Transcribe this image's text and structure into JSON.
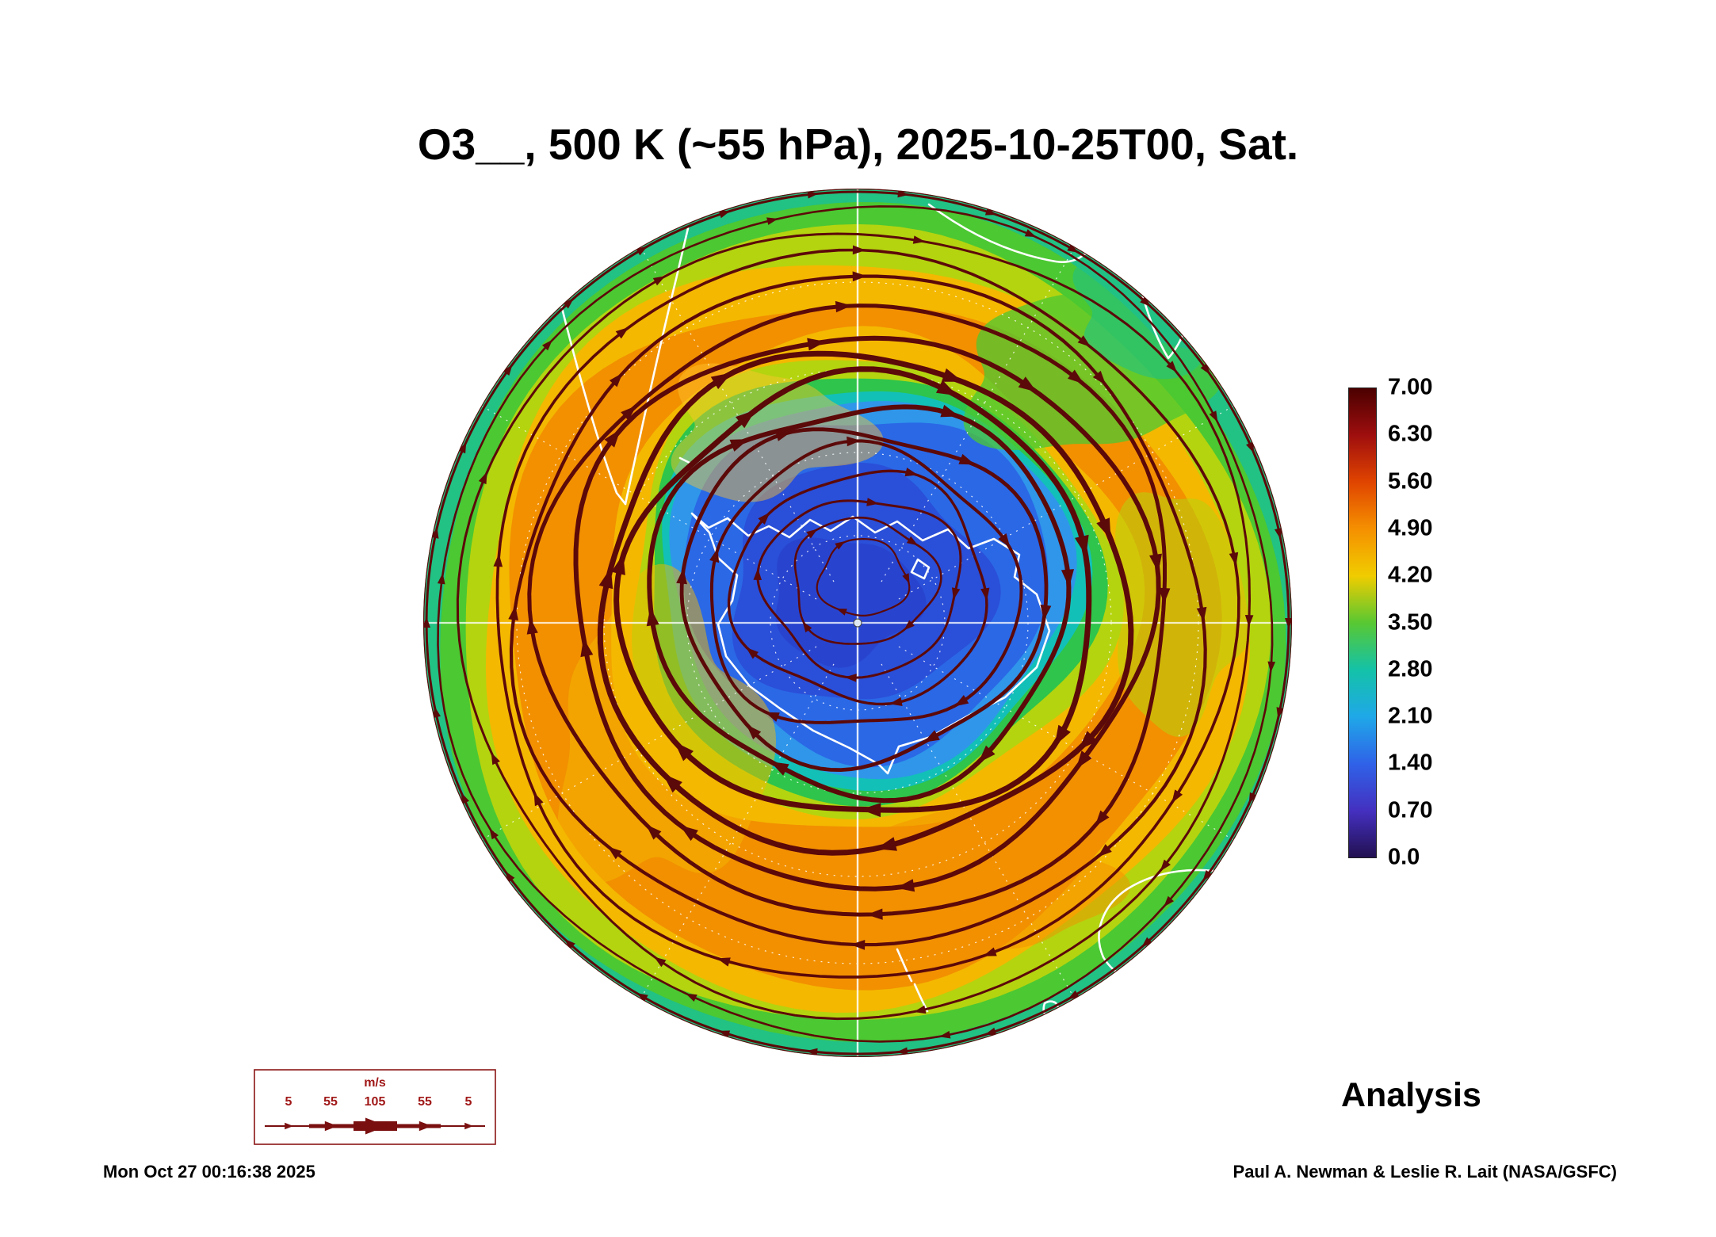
{
  "figure": {
    "title": "O3__, 500 K (~55 hPa), 2025-10-25T00, Sat.",
    "mode_label": "Analysis",
    "timestamp": "Mon Oct 27 00:16:38 2025",
    "credit": "Paul A. Newman & Leslie R. Lait (NASA/GSFC)"
  },
  "colorbar": {
    "ticks": [
      "7.00",
      "6.30",
      "5.60",
      "4.90",
      "4.20",
      "3.50",
      "2.80",
      "2.10",
      "1.40",
      "0.70",
      "0.0"
    ],
    "colors_top_to_bottom": [
      "#4a0000",
      "#9e0e0e",
      "#e04400",
      "#f59000",
      "#f0cc00",
      "#58c832",
      "#14c2a8",
      "#1fa8e8",
      "#2f62e8",
      "#4430c0",
      "#221050"
    ]
  },
  "wind_legend": {
    "unit": "m/s",
    "values": [
      "5",
      "55",
      "105",
      "55",
      "5"
    ],
    "line_color": "#7a0f0f",
    "text_color": "#a01818"
  },
  "chart_data": {
    "type": "heatmap",
    "title": "O3__, 500 K (~55 hPa), 2025-10-25T00, Sat.",
    "field": "O3 mixing ratio",
    "level": "500 K (~55 hPa)",
    "valid_time": "2025-10-25T00 (Saturday)",
    "analysis_type": "Analysis",
    "projection": "Southern Hemisphere polar stereographic, Antarctica centered",
    "colorbar_range": [
      0.0,
      7.0
    ],
    "colorbar_ticks": [
      7.0,
      6.3,
      5.6,
      4.9,
      4.2,
      3.5,
      2.8,
      2.1,
      1.4,
      0.7,
      0.0
    ],
    "regions": [
      {
        "feature": "polar vortex / ozone hole core",
        "location": "over Antarctica, slightly offset from the pole",
        "approx_values": [
          0.7,
          2.1
        ]
      },
      {
        "feature": "high-ozone collar ring",
        "location": "southern midlatitude ring around the vortex",
        "approx_values": [
          4.2,
          5.3
        ]
      },
      {
        "feature": "outer subtropical edge",
        "location": "outer rim of the map",
        "approx_values": [
          2.8,
          4.2
        ]
      }
    ],
    "streamlines": {
      "overlay": "horizontal wind streamlines with arrowheads",
      "direction": "clockwise circumpolar flow around the vortex",
      "speed_scale_m_per_s": [
        5,
        55,
        105,
        55,
        5
      ],
      "color": "#5c0909"
    },
    "legend_position": "colorbar right of map",
    "grid": "dashed white graticule with solid white 0/90/180/270 meridian crosshair, white coastlines"
  }
}
